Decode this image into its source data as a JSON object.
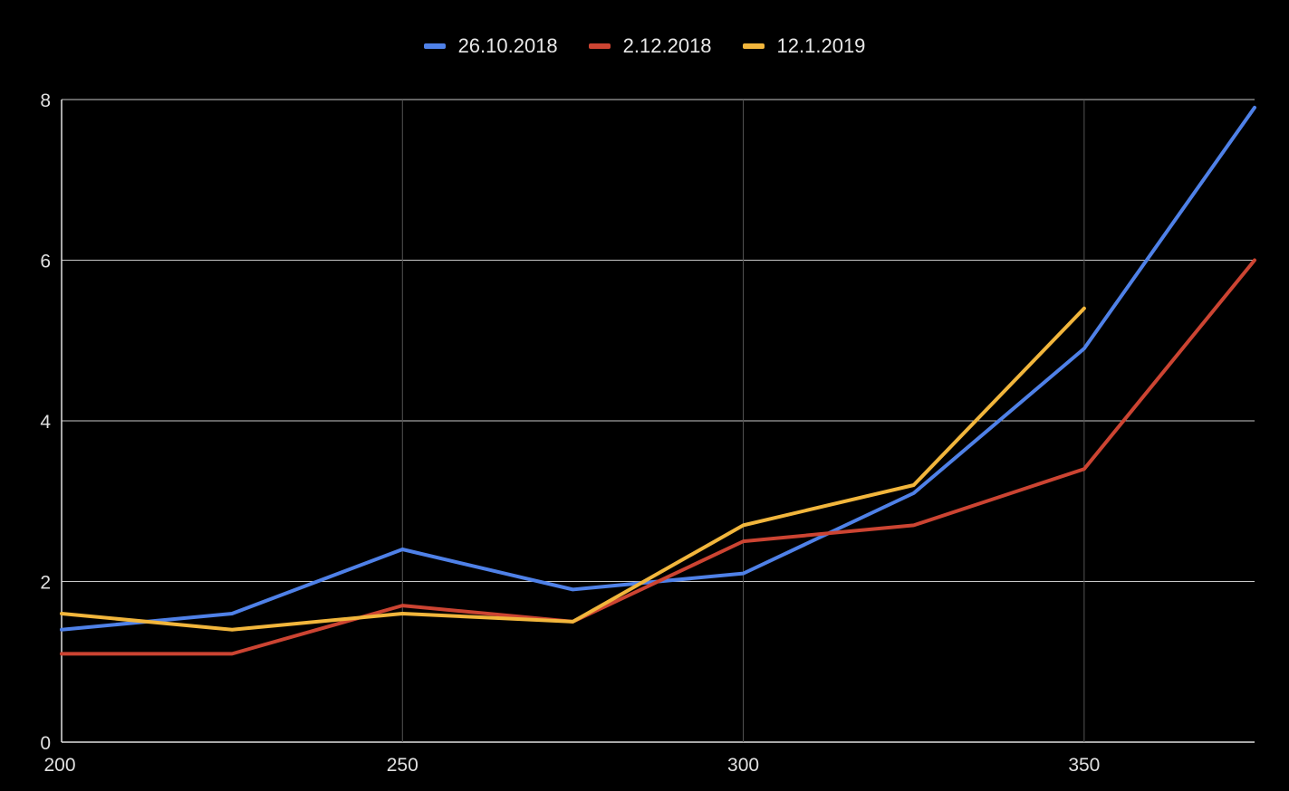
{
  "chart_data": {
    "type": "line",
    "title": "",
    "xlabel": "",
    "ylabel": "",
    "xlim": [
      200,
      375
    ],
    "ylim": [
      0,
      8
    ],
    "x_ticks": [
      200,
      250,
      300,
      350
    ],
    "y_ticks": [
      0,
      2,
      4,
      6,
      8
    ],
    "grid": true,
    "legend_position": "top",
    "x": [
      200,
      225,
      250,
      275,
      300,
      325,
      350,
      375
    ],
    "series": [
      {
        "name": "26.10.2018",
        "color": "#4f81e8",
        "values": [
          1.4,
          1.6,
          2.4,
          1.9,
          2.1,
          3.1,
          4.9,
          7.9
        ]
      },
      {
        "name": "2.12.2018",
        "color": "#cc4432",
        "values": [
          1.1,
          1.1,
          1.7,
          1.5,
          2.5,
          2.7,
          3.4,
          6.0
        ]
      },
      {
        "name": "12.1.2019",
        "color": "#f2b63c",
        "values": [
          1.6,
          1.4,
          1.6,
          1.5,
          2.7,
          3.2,
          5.4,
          null
        ]
      }
    ],
    "colors": {
      "background": "#000000",
      "gridline": "#c8c8c8",
      "axis_text": "#e0e0e0"
    }
  }
}
